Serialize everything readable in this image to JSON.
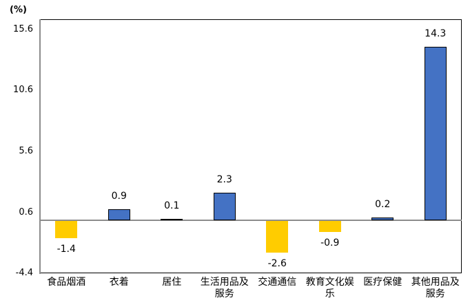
{
  "chart_data": {
    "type": "bar",
    "title": "",
    "xlabel": "",
    "ylabel": "(%)",
    "ylim": [
      -4.4,
      16.6
    ],
    "y_ticks": [
      "15.6",
      "10.6",
      "5.6",
      "0.6",
      "-4.4"
    ],
    "grid": false,
    "legend": null,
    "categories": [
      "食品烟酒",
      "衣着",
      "居住",
      "生活用品及服务",
      "交通通信",
      "教育文化娱乐",
      "医疗保健",
      "其他用品及服务"
    ],
    "category_lines": [
      [
        "食品烟酒"
      ],
      [
        "衣着"
      ],
      [
        "居住"
      ],
      [
        "生活用品及",
        "服务"
      ],
      [
        "交通通信"
      ],
      [
        "教育文化娱",
        "乐"
      ],
      [
        "医疗保健"
      ],
      [
        "其他用品及",
        "服务"
      ]
    ],
    "values": [
      -1.4,
      0.9,
      0.1,
      2.3,
      -2.6,
      -0.9,
      0.2,
      14.3
    ],
    "value_labels": [
      "-1.4",
      "0.9",
      "0.1",
      "2.3",
      "-2.6",
      "-0.9",
      "0.2",
      "14.3"
    ],
    "colors": {
      "positive": "#4472c4",
      "negative": "#ffcc00"
    }
  }
}
